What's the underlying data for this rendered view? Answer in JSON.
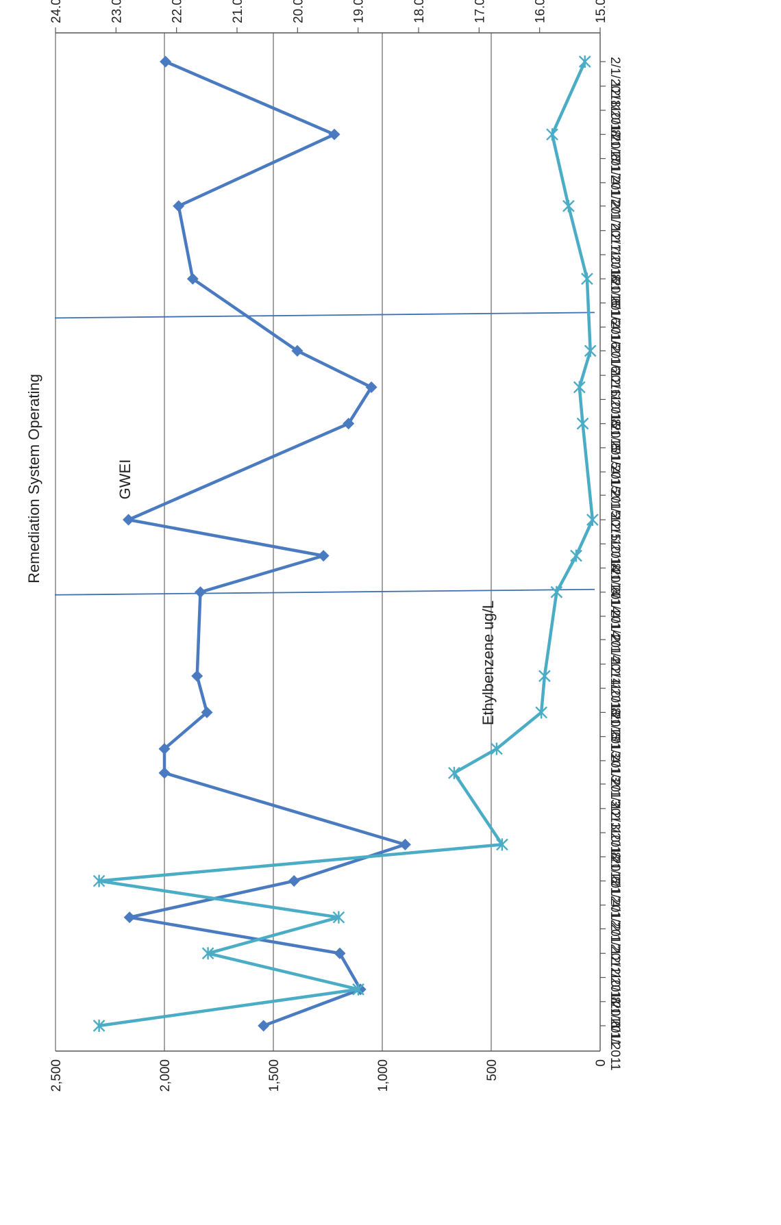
{
  "chart_data": {
    "type": "line",
    "orientation": "rotated-90",
    "title": "",
    "grid": true,
    "legend": "none",
    "annotations": {
      "shaded_period_label": "Remediation System Operating",
      "gwei_label": "GWEI",
      "ethylbenzene_label": "Ethylbenzene ug/L"
    },
    "x_axis": {
      "type": "date",
      "range": [
        "2011-06-01",
        "2018-02-01"
      ],
      "tick_labels": [
        "6/1/2011",
        "8/1/2011",
        "10/1/2011",
        "12/1/2011",
        "2/1/2012",
        "4/1/2012",
        "6/1/2012",
        "8/1/2012",
        "10/1/2012",
        "12/1/2012",
        "2/1/2013",
        "4/1/2013",
        "6/1/2013",
        "8/1/2013",
        "10/1/2013",
        "12/1/2013",
        "2/1/2014",
        "4/1/2014",
        "6/1/2014",
        "8/1/2014",
        "10/1/2014",
        "12/1/2014",
        "2/1/2015",
        "4/1/2015",
        "6/1/2015",
        "8/1/2015",
        "10/1/2015",
        "12/1/2015",
        "2/1/2016",
        "4/1/2016",
        "6/1/2016",
        "8/1/2016",
        "10/1/2016",
        "12/1/2016",
        "2/1/2017",
        "4/1/2017",
        "6/1/2017",
        "8/1/2017",
        "10/1/2017",
        "12/1/2017",
        "2/1/2018"
      ]
    },
    "y_axis_left": {
      "range": [
        0,
        2500
      ],
      "tick_labels": [
        "0",
        "500",
        "1,000",
        "1,500",
        "2,000",
        "2,500"
      ]
    },
    "y_axis_right": {
      "range": [
        15,
        24
      ],
      "tick_labels": [
        "15.00",
        "16.00",
        "17.00",
        "18.00",
        "19.00",
        "20.00",
        "21.00",
        "22.00",
        "23.00",
        "24.00"
      ]
    },
    "vertical_markers": [
      "2014-06-01",
      "2016-05-01"
    ],
    "series": [
      {
        "name": "GWEI",
        "axis": "left",
        "color": "#4a7abf",
        "marker": "diamond",
        "x": [
          "2011-06-01",
          "2011-09-01",
          "2011-12-01",
          "2012-03-01",
          "2012-06-01",
          "2012-09-01",
          "2013-03-01",
          "2013-05-01",
          "2013-08-01",
          "2013-11-01",
          "2014-06-01",
          "2014-09-01",
          "2014-12-01",
          "2015-08-01",
          "2015-11-01",
          "2016-02-01",
          "2016-08-01",
          "2017-02-01",
          "2017-08-01",
          "2018-02-01"
        ],
        "values": [
          1545,
          1100,
          1195,
          2160,
          1405,
          895,
          2000,
          2000,
          1805,
          1850,
          1835,
          1270,
          2165,
          1155,
          1050,
          1390,
          1870,
          1935,
          1220,
          1995
        ]
      },
      {
        "name": "Ethylbenzene ug/L",
        "axis": "left",
        "color": "#4bacc6",
        "marker": "star",
        "x": [
          "2011-06-01",
          "2011-09-01",
          "2011-12-01",
          "2012-03-01",
          "2012-06-01",
          "2012-09-01",
          "2013-03-01",
          "2013-05-01",
          "2013-08-01",
          "2013-11-01",
          "2014-06-01",
          "2014-09-01",
          "2014-12-01",
          "2015-08-01",
          "2015-11-01",
          "2016-02-01",
          "2016-08-01",
          "2017-02-01",
          "2017-08-01",
          "2018-02-01"
        ],
        "values": [
          2300,
          1110,
          1800,
          1200,
          2300,
          450,
          670,
          475,
          270,
          255,
          200,
          110,
          35,
          80,
          95,
          45,
          60,
          145,
          220,
          70
        ]
      }
    ]
  }
}
